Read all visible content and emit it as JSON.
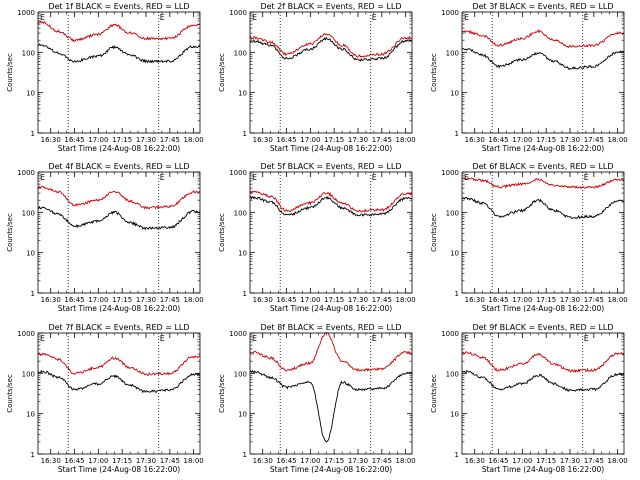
{
  "figure": {
    "style": {
      "background": "#ffffff",
      "axis_color": "#000000",
      "grid_style": "dotted vertical lines"
    }
  },
  "chart_data": [
    {
      "type": "line",
      "title": "Det 1f BLACK = Events, RED = LLD",
      "xlabel": "Start Time (24-Aug-08 16:22:00)",
      "ylabel": "Counts/sec",
      "xticks": [
        "16:30",
        "16:45",
        "17:00",
        "17:15",
        "17:30",
        "17:45",
        "18:00"
      ],
      "yticks": [
        "1",
        "10",
        "100",
        "1000"
      ],
      "ylim": [
        1,
        1000
      ],
      "yscale": "log",
      "corner_markers": [
        "E",
        "E"
      ],
      "dotted_lines_at": [
        "16:41",
        "17:38"
      ],
      "series": [
        {
          "color": "#d40000",
          "x": [
            "16:25",
            "16:35",
            "16:45",
            "17:00",
            "17:10",
            "17:20",
            "17:30",
            "17:45",
            "18:00"
          ],
          "y": [
            550,
            330,
            200,
            280,
            480,
            300,
            220,
            220,
            480
          ]
        },
        {
          "color": "#000000",
          "x": [
            "16:25",
            "16:35",
            "16:45",
            "17:00",
            "17:10",
            "17:20",
            "17:30",
            "17:45",
            "18:00"
          ],
          "y": [
            150,
            95,
            60,
            80,
            135,
            85,
            60,
            60,
            140
          ]
        }
      ]
    },
    {
      "type": "line",
      "title": "Det 2f BLACK = Events, RED = LLD",
      "xlabel": "Start Time (24-Aug-08 16:22:00)",
      "ylabel": "Counts/sec",
      "xticks": [
        "16:30",
        "16:45",
        "17:00",
        "17:15",
        "17:30",
        "17:45",
        "18:00"
      ],
      "yticks": [
        "1",
        "10",
        "100",
        "1000"
      ],
      "ylim": [
        1,
        1000
      ],
      "yscale": "log",
      "corner_markers": [
        "E",
        "E"
      ],
      "dotted_lines_at": [
        "16:41",
        "17:38"
      ],
      "series": [
        {
          "color": "#d40000",
          "x": [
            "16:25",
            "16:35",
            "16:45",
            "17:00",
            "17:10",
            "17:20",
            "17:30",
            "17:45",
            "18:00"
          ],
          "y": [
            230,
            180,
            90,
            160,
            280,
            150,
            80,
            90,
            230
          ]
        },
        {
          "color": "#000000",
          "x": [
            "16:25",
            "16:35",
            "16:45",
            "17:00",
            "17:10",
            "17:20",
            "17:30",
            "17:45",
            "18:00"
          ],
          "y": [
            190,
            150,
            70,
            120,
            220,
            120,
            65,
            70,
            190
          ]
        }
      ]
    },
    {
      "type": "line",
      "title": "Det 3f BLACK = Events, RED = LLD",
      "xlabel": "Start Time (24-Aug-08 16:22:00)",
      "ylabel": "Counts/sec",
      "xticks": [
        "16:30",
        "16:45",
        "17:00",
        "17:15",
        "17:30",
        "17:45",
        "18:00"
      ],
      "yticks": [
        "1",
        "10",
        "100",
        "1000"
      ],
      "ylim": [
        1,
        1000
      ],
      "yscale": "log",
      "corner_markers": [
        "E",
        "E"
      ],
      "dotted_lines_at": [
        "16:41",
        "17:38"
      ],
      "series": [
        {
          "color": "#d40000",
          "x": [
            "16:25",
            "16:35",
            "16:45",
            "17:00",
            "17:10",
            "17:20",
            "17:30",
            "17:45",
            "18:00"
          ],
          "y": [
            330,
            260,
            150,
            220,
            330,
            200,
            140,
            150,
            300
          ]
        },
        {
          "color": "#000000",
          "x": [
            "16:25",
            "16:35",
            "16:45",
            "17:00",
            "17:10",
            "17:20",
            "17:30",
            "17:45",
            "18:00"
          ],
          "y": [
            120,
            85,
            45,
            65,
            95,
            60,
            40,
            45,
            100
          ]
        }
      ]
    },
    {
      "type": "line",
      "title": "Det 4f BLACK = Events, RED = LLD",
      "xlabel": "Start Time (24-Aug-08 16:22:00)",
      "ylabel": "Counts/sec",
      "xticks": [
        "16:30",
        "16:45",
        "17:00",
        "17:15",
        "17:30",
        "17:45",
        "18:00"
      ],
      "yticks": [
        "1",
        "10",
        "100",
        "1000"
      ],
      "ylim": [
        1,
        1000
      ],
      "yscale": "log",
      "corner_markers": [
        "E",
        "E"
      ],
      "dotted_lines_at": [
        "16:41",
        "17:38"
      ],
      "series": [
        {
          "color": "#d40000",
          "x": [
            "16:25",
            "16:35",
            "16:45",
            "17:00",
            "17:10",
            "17:20",
            "17:30",
            "17:45",
            "18:00"
          ],
          "y": [
            420,
            320,
            150,
            200,
            330,
            190,
            130,
            140,
            320
          ]
        },
        {
          "color": "#000000",
          "x": [
            "16:25",
            "16:35",
            "16:45",
            "17:00",
            "17:10",
            "17:20",
            "17:30",
            "17:45",
            "18:00"
          ],
          "y": [
            130,
            90,
            45,
            60,
            100,
            55,
            40,
            42,
            105
          ]
        }
      ]
    },
    {
      "type": "line",
      "title": "Det 5f BLACK = Events, RED = LLD",
      "xlabel": "Start Time (24-Aug-08 16:22:00)",
      "ylabel": "Counts/sec",
      "xticks": [
        "16:30",
        "16:45",
        "17:00",
        "17:15",
        "17:30",
        "17:45",
        "18:00"
      ],
      "yticks": [
        "1",
        "10",
        "100",
        "1000"
      ],
      "ylim": [
        1,
        1000
      ],
      "yscale": "log",
      "corner_markers": [
        "E",
        "E"
      ],
      "dotted_lines_at": [
        "16:41",
        "17:38"
      ],
      "series": [
        {
          "color": "#d40000",
          "x": [
            "16:25",
            "16:35",
            "16:45",
            "17:00",
            "17:10",
            "17:20",
            "17:30",
            "17:45",
            "18:00"
          ],
          "y": [
            320,
            250,
            110,
            170,
            300,
            170,
            110,
            115,
            290
          ]
        },
        {
          "color": "#000000",
          "x": [
            "16:25",
            "16:35",
            "16:45",
            "17:00",
            "17:10",
            "17:20",
            "17:30",
            "17:45",
            "18:00"
          ],
          "y": [
            230,
            180,
            85,
            130,
            230,
            130,
            85,
            90,
            220
          ]
        }
      ]
    },
    {
      "type": "line",
      "title": "Det 6f BLACK = Events, RED = LLD",
      "xlabel": "Start Time (24-Aug-08 16:22:00)",
      "ylabel": "Counts/sec",
      "xticks": [
        "16:30",
        "16:45",
        "17:00",
        "17:15",
        "17:30",
        "17:45",
        "18:00"
      ],
      "yticks": [
        "1",
        "10",
        "100",
        "1000"
      ],
      "ylim": [
        1,
        1000
      ],
      "yscale": "log",
      "corner_markers": [
        "E",
        "E"
      ],
      "dotted_lines_at": [
        "16:41",
        "17:38"
      ],
      "series": [
        {
          "color": "#d40000",
          "x": [
            "16:25",
            "16:35",
            "16:45",
            "17:00",
            "17:10",
            "17:20",
            "17:30",
            "17:45",
            "18:00"
          ],
          "y": [
            700,
            620,
            430,
            500,
            650,
            470,
            420,
            420,
            650
          ]
        },
        {
          "color": "#000000",
          "x": [
            "16:25",
            "16:35",
            "16:45",
            "17:00",
            "17:10",
            "17:20",
            "17:30",
            "17:45",
            "18:00"
          ],
          "y": [
            220,
            170,
            80,
            110,
            200,
            110,
            75,
            80,
            190
          ]
        }
      ]
    },
    {
      "type": "line",
      "title": "Det 7f BLACK = Events, RED = LLD",
      "xlabel": "Start Time (24-Aug-08 16:22:00)",
      "ylabel": "Counts/sec",
      "xticks": [
        "16:30",
        "16:45",
        "17:00",
        "17:15",
        "17:30",
        "17:45",
        "18:00"
      ],
      "yticks": [
        "1",
        "10",
        "100",
        "1000"
      ],
      "ylim": [
        1,
        1000
      ],
      "yscale": "log",
      "corner_markers": [
        "E",
        "E"
      ],
      "dotted_lines_at": [
        "16:41",
        "17:38"
      ],
      "series": [
        {
          "color": "#d40000",
          "x": [
            "16:25",
            "16:35",
            "16:45",
            "17:00",
            "17:10",
            "17:20",
            "17:30",
            "17:45",
            "18:00"
          ],
          "y": [
            300,
            220,
            100,
            140,
            240,
            140,
            95,
            100,
            260
          ]
        },
        {
          "color": "#000000",
          "x": [
            "16:25",
            "16:35",
            "16:45",
            "17:00",
            "17:10",
            "17:20",
            "17:30",
            "17:45",
            "18:00"
          ],
          "y": [
            110,
            80,
            40,
            55,
            85,
            50,
            35,
            38,
            95
          ]
        }
      ]
    },
    {
      "type": "line",
      "title": "Det 8f BLACK = Events, RED = LLD",
      "xlabel": "Start Time (24-Aug-08 16:22:00)",
      "ylabel": "Counts/sec",
      "xticks": [
        "16:30",
        "16:45",
        "17:00",
        "17:15",
        "17:30",
        "17:45",
        "18:00"
      ],
      "yticks": [
        "1",
        "10",
        "100",
        "1000"
      ],
      "ylim": [
        1,
        1000
      ],
      "yscale": "log",
      "corner_markers": [
        "E",
        "E"
      ],
      "dotted_lines_at": [
        "16:41",
        "17:38"
      ],
      "series": [
        {
          "color": "#d40000",
          "x": [
            "16:25",
            "16:35",
            "16:45",
            "17:00",
            "17:10",
            "17:20",
            "17:30",
            "17:45",
            "18:00"
          ],
          "y": [
            330,
            240,
            120,
            180,
            1000,
            200,
            120,
            130,
            330
          ]
        },
        {
          "color": "#000000",
          "x": [
            "16:25",
            "16:35",
            "16:45",
            "17:00",
            "17:10",
            "17:20",
            "17:30",
            "17:45",
            "18:00"
          ],
          "y": [
            110,
            80,
            45,
            60,
            2,
            60,
            40,
            42,
            100
          ]
        }
      ]
    },
    {
      "type": "line",
      "title": "Det 9f BLACK = Events, RED = LLD",
      "xlabel": "Start Time (24-Aug-08 16:22:00)",
      "ylabel": "Counts/sec",
      "xticks": [
        "16:30",
        "16:45",
        "17:00",
        "17:15",
        "17:30",
        "17:45",
        "18:00"
      ],
      "yticks": [
        "1",
        "10",
        "100",
        "1000"
      ],
      "ylim": [
        1,
        1000
      ],
      "yscale": "log",
      "corner_markers": [
        "E",
        "E"
      ],
      "dotted_lines_at": [
        "16:41",
        "17:38"
      ],
      "series": [
        {
          "color": "#d40000",
          "x": [
            "16:25",
            "16:35",
            "16:45",
            "17:00",
            "17:10",
            "17:20",
            "17:30",
            "17:45",
            "18:00"
          ],
          "y": [
            330,
            250,
            120,
            170,
            300,
            170,
            115,
            120,
            310
          ]
        },
        {
          "color": "#000000",
          "x": [
            "16:25",
            "16:35",
            "16:45",
            "17:00",
            "17:10",
            "17:20",
            "17:30",
            "17:45",
            "18:00"
          ],
          "y": [
            110,
            80,
            40,
            55,
            90,
            55,
            38,
            40,
            95
          ]
        }
      ]
    }
  ]
}
